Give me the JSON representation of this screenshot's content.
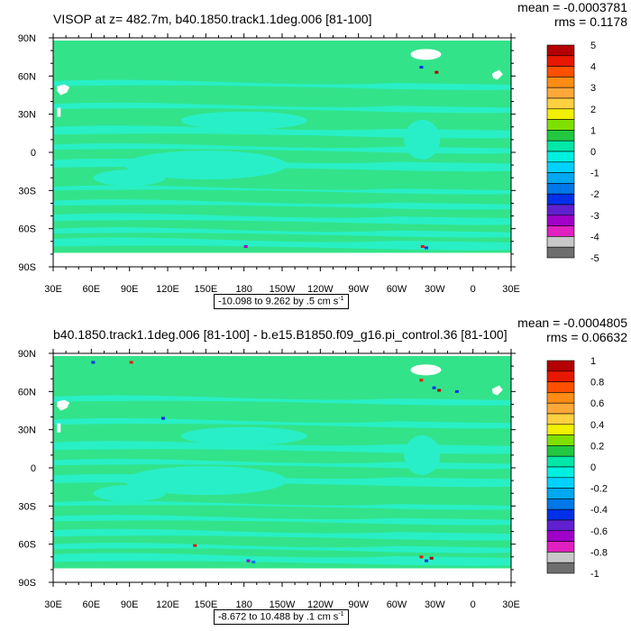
{
  "chart_data": [
    {
      "type": "heatmap",
      "title": "VISOP at z= 482.7m, b40.1850.track1.1deg.006 [81-100]",
      "mean_label": "mean = -0.0003781",
      "rms_label": "rms = 0.1178",
      "range_label": "-10.098 to 9.262 by .5 cm s",
      "range_exponent": "-1",
      "x_ticks": [
        "30E",
        "60E",
        "90E",
        "120E",
        "150E",
        "180",
        "150W",
        "120W",
        "90W",
        "60W",
        "30W",
        "0",
        "30E"
      ],
      "y_ticks": [
        "90N",
        "60N",
        "30N",
        "0",
        "30S",
        "60S",
        "90S"
      ],
      "colorbar_labels": [
        "5",
        "4",
        "3",
        "2",
        "1",
        "0",
        "-1",
        "-2",
        "-3",
        "-4",
        "-5"
      ],
      "colorbar_colors": [
        "#B40000",
        "#E81800",
        "#FF5000",
        "#FF8C14",
        "#FFA83A",
        "#FFD040",
        "#F0F000",
        "#7FE000",
        "#22C840",
        "#00E7A8",
        "#00F0E0",
        "#00D2FF",
        "#00A8F0",
        "#0078E8",
        "#0030E8",
        "#6020D0",
        "#A000C8",
        "#E020C0",
        "#C8C8C8",
        "#6E6E6E"
      ],
      "colors": {
        "ocean_main": "#33E38A",
        "ocean_band": "#28EFC8",
        "land": "#FFFFFF"
      }
    },
    {
      "type": "heatmap",
      "title": "b40.1850.track1.1deg.006 [81-100] - b.e15.B1850.f09_g16.pi_control.36 [81-100]",
      "mean_label": "mean = -0.0004805",
      "rms_label": "rms = 0.06632",
      "range_label": "-8.672 to 10.488 by .1 cm s",
      "range_exponent": "-1",
      "x_ticks": [
        "30E",
        "60E",
        "90E",
        "120E",
        "150E",
        "180",
        "150W",
        "120W",
        "90W",
        "60W",
        "30W",
        "0",
        "30E"
      ],
      "y_ticks": [
        "90N",
        "60N",
        "30N",
        "0",
        "30S",
        "60S",
        "90S"
      ],
      "colorbar_labels": [
        "1",
        "0.8",
        "0.6",
        "0.4",
        "0.2",
        "0",
        "-0.2",
        "-0.4",
        "-0.6",
        "-0.8",
        "-1"
      ],
      "colorbar_colors": [
        "#B40000",
        "#E81800",
        "#FF5000",
        "#FF8C14",
        "#FFA83A",
        "#FFD040",
        "#F0F000",
        "#7FE000",
        "#22C840",
        "#00E7A8",
        "#00F0E0",
        "#00D2FF",
        "#00A8F0",
        "#0078E8",
        "#0030E8",
        "#6020D0",
        "#A000C8",
        "#E020C0",
        "#C8C8C8",
        "#6E6E6E"
      ],
      "colors": {
        "ocean_main": "#33E38A",
        "ocean_band": "#28EFC8",
        "land": "#FFFFFF"
      }
    }
  ]
}
